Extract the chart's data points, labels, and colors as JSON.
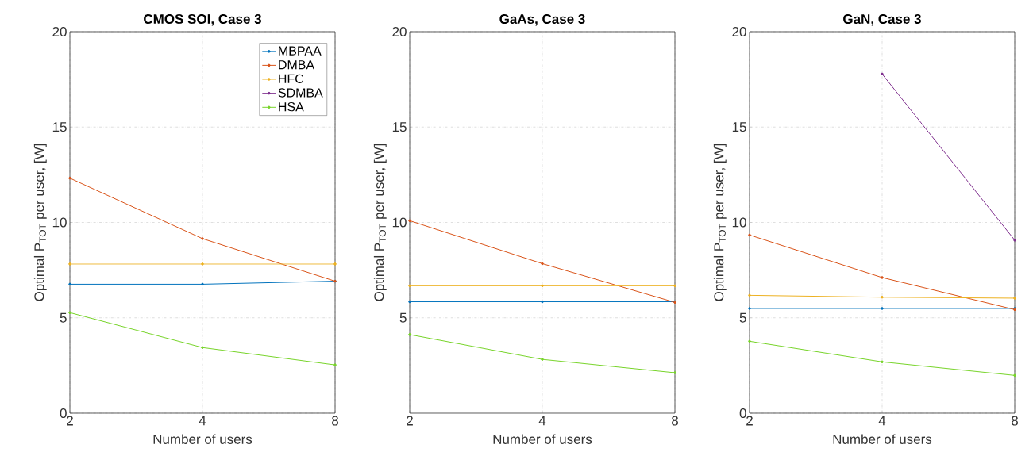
{
  "chart_data": [
    {
      "type": "line",
      "title": "CMOS SOI, Case 3",
      "xlabel": "Number of users",
      "ylabel": "Optimal P$_{TOT}$ per user, [W]",
      "categories": [
        "2",
        "4",
        "8"
      ],
      "ylim": [
        0,
        20
      ],
      "yticks": [
        0,
        5,
        10,
        15,
        20
      ],
      "grid": true,
      "marker": "circle",
      "legend": "top right",
      "series": [
        {
          "name": "MBPAA",
          "color": "#0072bd",
          "values": [
            6.76,
            6.76,
            6.92
          ]
        },
        {
          "name": "DMBA",
          "color": "#d95319",
          "values": [
            12.32,
            9.15,
            6.92
          ]
        },
        {
          "name": "HFC",
          "color": "#edb120",
          "values": [
            7.82,
            7.82,
            7.82
          ]
        },
        {
          "name": "SDMBA",
          "color": "#7e2f8e",
          "values": [
            null,
            null,
            null
          ]
        },
        {
          "name": "HSA",
          "color": "#77d42a",
          "values": [
            5.27,
            3.44,
            2.53
          ]
        }
      ]
    },
    {
      "type": "line",
      "title": "GaAs, Case 3",
      "xlabel": "Number of users",
      "ylabel": "Optimal P$_{TOT}$ per user, [W]",
      "categories": [
        "2",
        "4",
        "8"
      ],
      "ylim": [
        0,
        20
      ],
      "yticks": [
        5,
        10,
        15,
        20
      ],
      "grid": true,
      "marker": "circle",
      "series": [
        {
          "color": "#0072bd",
          "values": [
            5.84,
            5.84,
            5.84
          ]
        },
        {
          "color": "#d95319",
          "values": [
            10.09,
            7.84,
            5.81
          ]
        },
        {
          "color": "#edb120",
          "values": [
            6.68,
            6.68,
            6.68
          ]
        },
        {
          "color": "#77d42a",
          "values": [
            4.12,
            2.82,
            2.12
          ]
        }
      ]
    },
    {
      "type": "line",
      "title": "GaN, Case 3",
      "xlabel": "Number of users",
      "ylabel": "Optimal P$_{TOT}$ per user, [W]",
      "categories": [
        "2",
        "4",
        "8"
      ],
      "ylim": [
        0,
        20
      ],
      "yticks": [
        0,
        5,
        10,
        15,
        20
      ],
      "grid": true,
      "marker": "circle",
      "series": [
        {
          "color": "#0072bd",
          "values": [
            5.49,
            5.49,
            5.49
          ]
        },
        {
          "color": "#d95319",
          "values": [
            9.34,
            7.11,
            5.43
          ]
        },
        {
          "color": "#edb120",
          "values": [
            6.18,
            6.08,
            6.03
          ]
        },
        {
          "color": "#7e2f8e",
          "values": [
            null,
            17.78,
            9.07
          ]
        },
        {
          "color": "#77d42a",
          "values": [
            3.77,
            2.69,
            1.98
          ]
        }
      ]
    }
  ]
}
